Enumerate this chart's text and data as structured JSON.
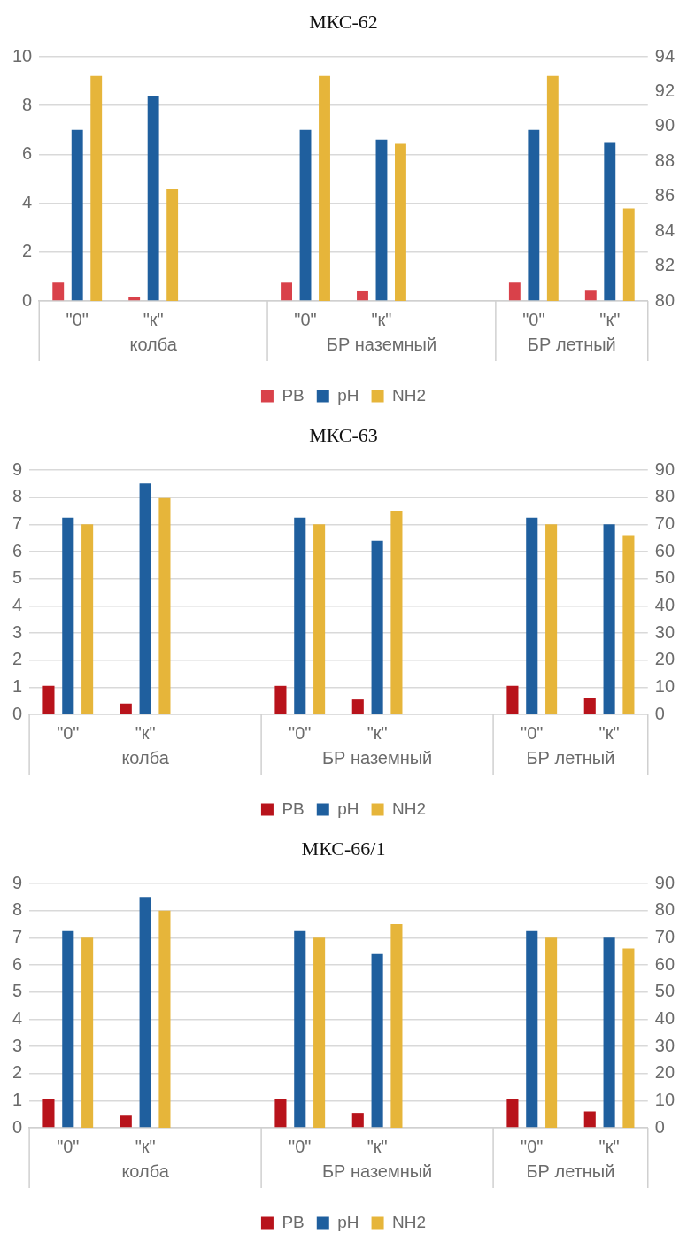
{
  "chart_data": [
    {
      "type": "bar",
      "title": "МКС-62",
      "categories": [
        "\"0\"",
        "\"к\"",
        null,
        "\"0\"",
        "\"к\"",
        null,
        "\"0\"",
        "\"к\""
      ],
      "series": [
        {
          "name": "PB",
          "color": "#d9414a",
          "values": [
            0.75,
            0.17,
            null,
            0.75,
            0.4,
            null,
            0.75,
            0.43
          ]
        },
        {
          "name": "pH",
          "color": "#1f5f9e",
          "values": [
            7.0,
            8.4,
            null,
            7.0,
            6.6,
            null,
            7.0,
            6.5
          ]
        },
        {
          "name": "NH2",
          "color": "#e6b53a",
          "axis": "y2",
          "values": [
            92.9,
            86.4,
            null,
            92.9,
            89.0,
            null,
            92.9,
            85.3
          ]
        }
      ],
      "ylim": [
        0,
        10
      ],
      "yticks": [
        0,
        2,
        4,
        6,
        8,
        10
      ],
      "y2lim": [
        80,
        94
      ],
      "y2ticks": [
        80,
        82,
        84,
        86,
        88,
        90,
        92,
        94
      ],
      "annotations": [
        "колба",
        "БР наземный",
        "БР летный"
      ],
      "grid": "y",
      "legend": "bottom"
    },
    {
      "type": "bar",
      "title": "МКС-63",
      "categories": [
        "\"0\"",
        "\"к\"",
        null,
        "\"0\"",
        "\"к\"",
        null,
        "\"0\"",
        "\"к\""
      ],
      "series": [
        {
          "name": "PB",
          "color": "#b8131b",
          "values": [
            1.05,
            0.4,
            null,
            1.05,
            0.55,
            null,
            1.05,
            0.6
          ]
        },
        {
          "name": "pH",
          "color": "#1f5f9e",
          "values": [
            7.25,
            8.5,
            null,
            7.25,
            6.4,
            null,
            7.25,
            7.0
          ]
        },
        {
          "name": "NH2",
          "color": "#e6b53a",
          "axis": "y2",
          "values": [
            70,
            80,
            null,
            70,
            75,
            null,
            70,
            66
          ]
        }
      ],
      "ylim": [
        0,
        9
      ],
      "yticks": [
        0,
        1,
        2,
        3,
        4,
        5,
        6,
        7,
        8,
        9
      ],
      "y2lim": [
        0,
        90
      ],
      "y2ticks": [
        0,
        10,
        20,
        30,
        40,
        50,
        60,
        70,
        80,
        90
      ],
      "annotations": [
        "колба",
        "БР наземный",
        "БР летный"
      ],
      "grid": "y",
      "legend": "bottom"
    },
    {
      "type": "bar",
      "title": "МКС-66/1",
      "categories": [
        "\"0\"",
        "\"к\"",
        null,
        "\"0\"",
        "\"к\"",
        null,
        "\"0\"",
        "\"к\""
      ],
      "series": [
        {
          "name": "PB",
          "color": "#b8131b",
          "values": [
            1.05,
            0.45,
            null,
            1.05,
            0.55,
            null,
            1.05,
            0.6
          ]
        },
        {
          "name": "pH",
          "color": "#1f5f9e",
          "values": [
            7.25,
            8.5,
            null,
            7.25,
            6.4,
            null,
            7.25,
            7.0
          ]
        },
        {
          "name": "NH2",
          "color": "#e6b53a",
          "axis": "y2",
          "values": [
            70,
            80,
            null,
            70,
            75,
            null,
            70,
            66
          ]
        }
      ],
      "ylim": [
        0,
        9
      ],
      "yticks": [
        0,
        1,
        2,
        3,
        4,
        5,
        6,
        7,
        8,
        9
      ],
      "y2lim": [
        0,
        90
      ],
      "y2ticks": [
        0,
        10,
        20,
        30,
        40,
        50,
        60,
        70,
        80,
        90
      ],
      "annotations": [
        "колба",
        "БР наземный",
        "БР летный"
      ],
      "grid": "y",
      "legend": "bottom"
    }
  ]
}
